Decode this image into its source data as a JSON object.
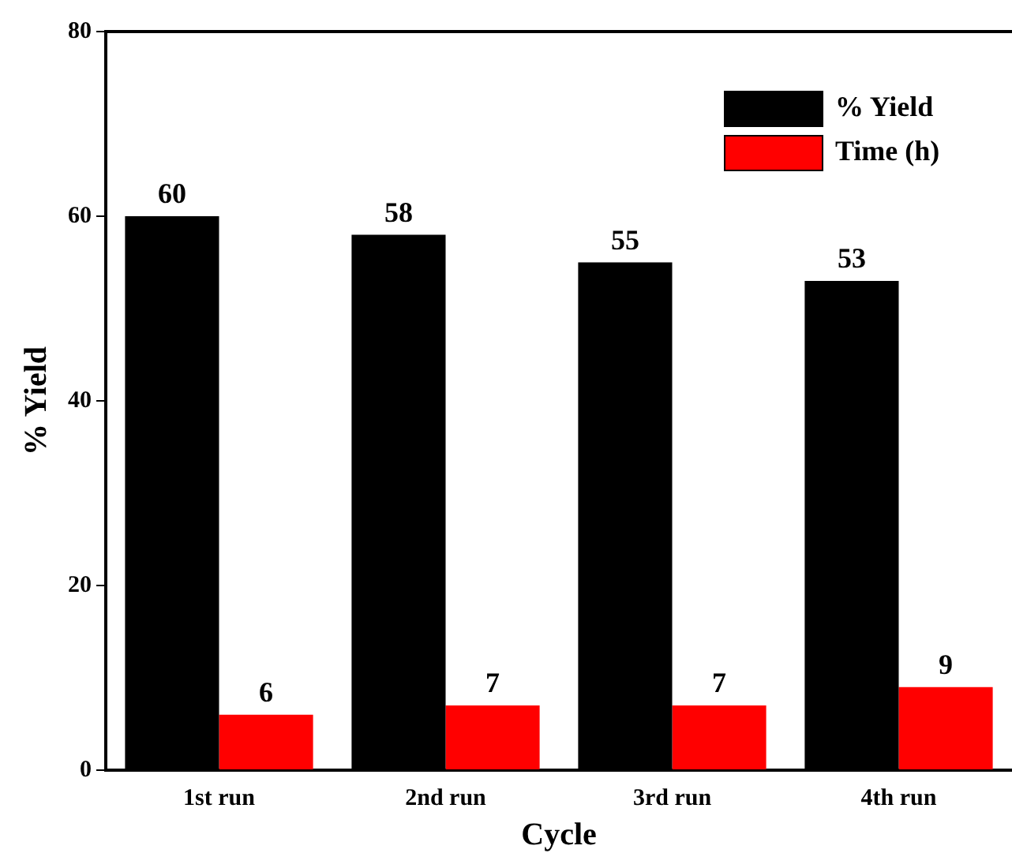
{
  "chart_data": {
    "type": "bar",
    "xlabel": "Cycle",
    "ylabel": "% Yield",
    "categories": [
      "1st run",
      "2nd run",
      "3rd run",
      "4th run"
    ],
    "series": [
      {
        "name": "% Yield",
        "color": "#000000",
        "values": [
          60,
          58,
          55,
          53
        ]
      },
      {
        "name": "Time (h)",
        "color": "#ff0000",
        "values": [
          6,
          7,
          7,
          9
        ]
      }
    ],
    "ylim": [
      0,
      80
    ],
    "yticks": [
      0,
      20,
      40,
      60,
      80
    ],
    "grid": false,
    "legend": "top right",
    "data_labels": true
  }
}
